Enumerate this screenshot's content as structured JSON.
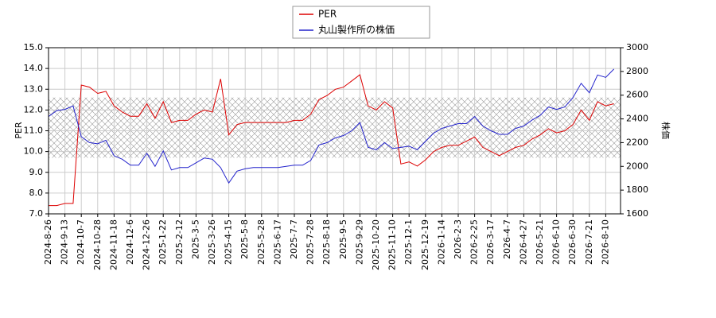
{
  "chart_data": {
    "type": "line",
    "categories": [
      "2024-8-26",
      null,
      "2024-9-13",
      null,
      "2024-10-7",
      null,
      "2024-10-28",
      null,
      "2024-11-18",
      null,
      "2024-12-6",
      null,
      "2024-12-26",
      null,
      "2025-1-22",
      null,
      "2025-2-12",
      null,
      "2025-3-5",
      null,
      "2025-3-26",
      null,
      "2025-4-15",
      null,
      "2025-5-8",
      null,
      "2025-5-28",
      null,
      "2025-6-17",
      null,
      "2025-7-7",
      null,
      "2025-7-28",
      null,
      "2025-8-18",
      null,
      "2025-9-5",
      null,
      "2025-9-29",
      null,
      "2025-10-20",
      null,
      "2025-11-10",
      null,
      "2025-12-1",
      null,
      "2025-12-19",
      null,
      "2026-1-14",
      null,
      "2026-2-3",
      null,
      "2026-2-25",
      null,
      "2026-3-17",
      null,
      "2026-4-7",
      null,
      "2026-4-27",
      null,
      "2026-5-21",
      null,
      "2026-6-10",
      null,
      "2026-6-30",
      null,
      "2026-7-21",
      null,
      "2026-8-10",
      null
    ],
    "series": [
      {
        "name": "PER",
        "color": "#dd0000",
        "values": [
          7.4,
          7.4,
          7.5,
          7.5,
          13.2,
          13.1,
          12.8,
          12.9,
          12.2,
          11.9,
          11.7,
          11.7,
          12.3,
          11.6,
          12.4,
          11.4,
          11.5,
          11.5,
          11.8,
          12.0,
          11.9,
          13.5,
          10.8,
          11.3,
          11.4,
          11.4,
          11.4,
          11.4,
          11.4,
          11.4,
          11.5,
          11.5,
          11.8,
          12.5,
          12.7,
          13.0,
          13.1,
          13.4,
          13.7,
          12.2,
          12.0,
          12.4,
          12.1,
          9.4,
          9.5,
          9.3,
          9.6,
          10.0,
          10.2,
          10.3,
          10.3,
          10.5,
          10.7,
          10.2,
          10.0,
          9.8,
          10.0,
          10.2,
          10.3,
          10.6,
          10.8,
          11.1,
          10.9,
          11.0,
          11.3,
          12.0,
          11.5,
          12.4,
          12.2,
          12.3
        ]
      },
      {
        "name": "丸山製作所の株価",
        "color": "#2222cc",
        "axis": "y2",
        "values": [
          2420,
          2470,
          2480,
          2510,
          2250,
          2200,
          2190,
          2220,
          2090,
          2060,
          2010,
          2010,
          2110,
          2000,
          2130,
          1970,
          1990,
          1990,
          2030,
          2070,
          2060,
          1990,
          1860,
          1960,
          1980,
          1990,
          1990,
          1990,
          1990,
          2000,
          2010,
          2010,
          2050,
          2180,
          2200,
          2240,
          2260,
          2300,
          2370,
          2160,
          2140,
          2200,
          2150,
          2160,
          2170,
          2140,
          2210,
          2280,
          2320,
          2340,
          2360,
          2360,
          2420,
          2340,
          2300,
          2270,
          2270,
          2320,
          2340,
          2390,
          2430,
          2500,
          2480,
          2500,
          2580,
          2700,
          2620,
          2770,
          2750,
          2820
        ]
      }
    ],
    "band": [
      9.7,
      12.6
    ],
    "ylabel": "PER",
    "y2label": "株価",
    "ylim": [
      7,
      15
    ],
    "yticks": [
      {
        "value": 7,
        "label": "7.0"
      },
      {
        "value": 8,
        "label": "8.0"
      },
      {
        "value": 9,
        "label": "9.0"
      },
      {
        "value": 10,
        "label": "10.0"
      },
      {
        "value": 11,
        "label": "11.0"
      },
      {
        "value": 12,
        "label": "12.0"
      },
      {
        "value": 13,
        "label": "13.0"
      },
      {
        "value": 14,
        "label": "14.0"
      },
      {
        "value": 15,
        "label": "15.0"
      }
    ],
    "y2lim": [
      1600,
      3000
    ],
    "y2ticks": [
      1600,
      1800,
      2000,
      2200,
      2400,
      2600,
      2800,
      3000
    ],
    "grid": true
  }
}
